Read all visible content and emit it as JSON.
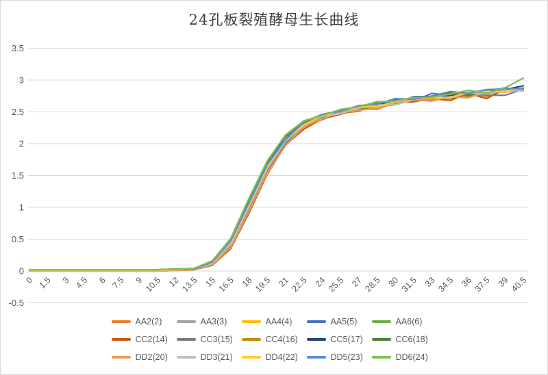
{
  "chart_data": {
    "type": "line",
    "title": "24孔板裂殖酵母生长曲线",
    "xlabel": "",
    "ylabel": "",
    "ylim": [
      -0.5,
      3.5
    ],
    "ytick_step": 0.5,
    "grid": true,
    "gridline_color": "#d9d9d9",
    "axis_label_color": "#595959",
    "title_color": "#3f3f3f",
    "legend_position": "bottom",
    "x": [
      0,
      1.5,
      3,
      4.5,
      6,
      7.5,
      9,
      10.5,
      12,
      13.5,
      15,
      16.5,
      18,
      19.5,
      21,
      22.5,
      24,
      25.5,
      27,
      28.5,
      30,
      31.5,
      33,
      34.5,
      36,
      37.5,
      39,
      40.5
    ],
    "series": [
      {
        "name": "AA2(2)",
        "color": "#ED7D31",
        "values": [
          0.01,
          0.01,
          0.01,
          0.01,
          0.01,
          0.01,
          0.01,
          0.01,
          0.02,
          0.02,
          0.1,
          0.36,
          0.92,
          1.53,
          1.98,
          2.27,
          2.38,
          2.48,
          2.51,
          2.61,
          2.62,
          2.69,
          2.67,
          2.74,
          2.8,
          2.74,
          2.84,
          2.83
        ]
      },
      {
        "name": "AA3(3)",
        "color": "#A5A5A5",
        "values": [
          0.01,
          0.01,
          0.01,
          0.01,
          0.01,
          0.01,
          0.01,
          0.01,
          0.02,
          0.03,
          0.12,
          0.41,
          0.99,
          1.59,
          2.03,
          2.26,
          2.43,
          2.48,
          2.57,
          2.56,
          2.64,
          2.66,
          2.73,
          2.71,
          2.78,
          2.82,
          2.81,
          2.87
        ]
      },
      {
        "name": "AA4(4)",
        "color": "#FFC000",
        "values": [
          0.01,
          0.01,
          0.01,
          0.01,
          0.01,
          0.01,
          0.01,
          0.01,
          0.02,
          0.03,
          0.13,
          0.44,
          1.03,
          1.63,
          2.04,
          2.31,
          2.44,
          2.47,
          2.56,
          2.62,
          2.62,
          2.7,
          2.75,
          2.73,
          2.79,
          2.85,
          2.84,
          2.89
        ]
      },
      {
        "name": "AA5(5)",
        "color": "#4472C4",
        "values": [
          0.01,
          0.01,
          0.01,
          0.01,
          0.01,
          0.01,
          0.01,
          0.01,
          0.02,
          0.03,
          0.14,
          0.46,
          1.06,
          1.65,
          2.09,
          2.3,
          2.44,
          2.53,
          2.53,
          2.61,
          2.69,
          2.67,
          2.79,
          2.76,
          2.74,
          2.84,
          2.84,
          2.84
        ]
      },
      {
        "name": "AA6(6)",
        "color": "#70AD47",
        "values": [
          0.02,
          0.02,
          0.02,
          0.02,
          0.02,
          0.02,
          0.02,
          0.02,
          0.03,
          0.04,
          0.16,
          0.5,
          1.12,
          1.71,
          2.09,
          2.36,
          2.44,
          2.52,
          2.58,
          2.58,
          2.66,
          2.72,
          2.71,
          2.77,
          2.74,
          2.83,
          2.87,
          2.84
        ]
      },
      {
        "name": "CC2(14)",
        "color": "#C55A11",
        "values": [
          0.0,
          0.0,
          0.0,
          0.0,
          0.0,
          0.0,
          0.0,
          0.0,
          0.01,
          0.02,
          0.09,
          0.35,
          0.91,
          1.52,
          1.98,
          2.23,
          2.39,
          2.46,
          2.55,
          2.54,
          2.65,
          2.66,
          2.71,
          2.68,
          2.79,
          2.71,
          2.86,
          2.87
        ]
      },
      {
        "name": "CC3(15)",
        "color": "#7B7B7B",
        "values": [
          0.0,
          0.0,
          0.0,
          0.0,
          0.0,
          0.0,
          0.0,
          0.0,
          0.01,
          0.02,
          0.11,
          0.4,
          0.98,
          1.58,
          2.01,
          2.29,
          2.38,
          2.5,
          2.53,
          2.59,
          2.61,
          2.7,
          2.71,
          2.71,
          2.81,
          2.76,
          2.76,
          2.86
        ]
      },
      {
        "name": "CC4(16)",
        "color": "#BF9000",
        "values": [
          0.01,
          0.01,
          0.01,
          0.01,
          0.01,
          0.01,
          0.01,
          0.01,
          0.02,
          0.03,
          0.13,
          0.43,
          1.02,
          1.62,
          2.06,
          2.3,
          2.41,
          2.51,
          2.56,
          2.57,
          2.67,
          2.69,
          2.7,
          2.78,
          2.75,
          2.83,
          2.84,
          2.85
        ]
      },
      {
        "name": "CC5(17)",
        "color": "#264478",
        "values": [
          0.01,
          0.01,
          0.01,
          0.01,
          0.01,
          0.01,
          0.01,
          0.01,
          0.02,
          0.03,
          0.13,
          0.45,
          1.04,
          1.64,
          2.06,
          2.32,
          2.43,
          2.48,
          2.58,
          2.61,
          2.63,
          2.74,
          2.74,
          2.75,
          2.81,
          2.78,
          2.85,
          2.91
        ]
      },
      {
        "name": "CC6(18)",
        "color": "#548235",
        "values": [
          0.02,
          0.02,
          0.02,
          0.02,
          0.02,
          0.02,
          0.02,
          0.02,
          0.03,
          0.04,
          0.15,
          0.49,
          1.11,
          1.7,
          2.11,
          2.32,
          2.46,
          2.52,
          2.54,
          2.64,
          2.67,
          2.68,
          2.75,
          2.8,
          2.76,
          2.82,
          2.88,
          2.83
        ]
      },
      {
        "name": "DD2(20)",
        "color": "#F1975A",
        "values": [
          0.0,
          0.0,
          0.0,
          0.0,
          0.0,
          0.0,
          0.0,
          0.0,
          0.01,
          0.02,
          0.1,
          0.37,
          0.94,
          1.54,
          1.97,
          2.27,
          2.39,
          2.49,
          2.53,
          2.55,
          2.64,
          2.69,
          2.68,
          2.74,
          2.72,
          2.82,
          2.81,
          2.87
        ]
      },
      {
        "name": "DD3(21)",
        "color": "#BFBFBF",
        "values": [
          0.01,
          0.01,
          0.01,
          0.01,
          0.01,
          0.01,
          0.01,
          0.01,
          0.02,
          0.03,
          0.12,
          0.42,
          1.01,
          1.61,
          2.04,
          2.29,
          2.43,
          2.47,
          2.56,
          2.61,
          2.61,
          2.69,
          2.73,
          2.73,
          2.8,
          2.78,
          2.84,
          2.83
        ]
      },
      {
        "name": "DD4(22)",
        "color": "#FFCD33",
        "values": [
          0.01,
          0.01,
          0.01,
          0.01,
          0.01,
          0.01,
          0.01,
          0.01,
          0.02,
          0.03,
          0.14,
          0.45,
          1.05,
          1.64,
          2.08,
          2.3,
          2.44,
          2.51,
          2.58,
          2.58,
          2.66,
          2.72,
          2.72,
          2.72,
          2.82,
          2.82,
          2.82,
          2.89
        ]
      },
      {
        "name": "DD5(23)",
        "color": "#5B8BD5",
        "values": [
          0.02,
          0.02,
          0.02,
          0.02,
          0.02,
          0.02,
          0.02,
          0.02,
          0.03,
          0.03,
          0.14,
          0.47,
          1.07,
          1.67,
          2.07,
          2.34,
          2.46,
          2.51,
          2.6,
          2.62,
          2.71,
          2.7,
          2.75,
          2.82,
          2.79,
          2.85,
          2.86,
          2.87
        ]
      },
      {
        "name": "DD6(24)",
        "color": "#7FBF53",
        "values": [
          0.02,
          0.02,
          0.02,
          0.02,
          0.02,
          0.02,
          0.02,
          0.02,
          0.03,
          0.04,
          0.16,
          0.51,
          1.14,
          1.73,
          2.14,
          2.36,
          2.44,
          2.54,
          2.58,
          2.66,
          2.67,
          2.73,
          2.73,
          2.78,
          2.84,
          2.79,
          2.88,
          3.03
        ]
      }
    ]
  }
}
